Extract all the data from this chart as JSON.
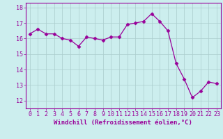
{
  "x": [
    0,
    1,
    2,
    3,
    4,
    5,
    6,
    7,
    8,
    9,
    10,
    11,
    12,
    13,
    14,
    15,
    16,
    17,
    18,
    19,
    20,
    21,
    22,
    23
  ],
  "y": [
    16.3,
    16.6,
    16.3,
    16.3,
    16.0,
    15.9,
    15.5,
    16.1,
    16.0,
    15.9,
    16.1,
    16.1,
    16.9,
    17.0,
    17.1,
    17.6,
    17.1,
    16.5,
    14.4,
    13.4,
    12.2,
    12.6,
    13.2,
    13.1
  ],
  "line_color": "#990099",
  "marker": "D",
  "marker_size": 2.5,
  "bg_color": "#cceeee",
  "grid_color": "#aacccc",
  "xlabel": "Windchill (Refroidissement éolien,°C)",
  "ylim": [
    11.5,
    18.3
  ],
  "xlim": [
    -0.5,
    23.5
  ],
  "yticks": [
    12,
    13,
    14,
    15,
    16,
    17,
    18
  ],
  "xticks": [
    0,
    1,
    2,
    3,
    4,
    5,
    6,
    7,
    8,
    9,
    10,
    11,
    12,
    13,
    14,
    15,
    16,
    17,
    18,
    19,
    20,
    21,
    22,
    23
  ],
  "xlabel_fontsize": 6.5,
  "tick_fontsize": 6.0,
  "tick_color": "#990099",
  "label_color": "#990099",
  "spine_color": "#990099"
}
